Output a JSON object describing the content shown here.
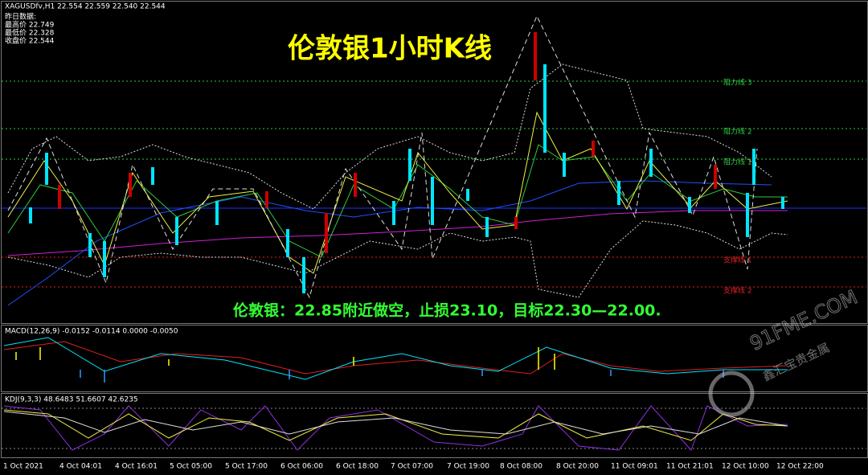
{
  "header": {
    "symbol_line": "XAGUSDfv,H1  22.554 22.559 22.540 22.544",
    "info": [
      "昨日数据:",
      "最高价 22.749",
      "最低价 22.328",
      "收盘价 22.544"
    ]
  },
  "title": "伦敦银1小时K线",
  "levels": [
    "阻力线 3",
    "阻力线 2",
    "阻力线 1",
    "支撑线 1",
    "支撑线 2"
  ],
  "advice": "伦敦银：22.85附近做空，止损23.10，目标22.30—22.00.",
  "macd_label": "MACD(12,26,9) -0.0152 -0.0114 0.0000 -0.0050",
  "kdj_label": "KDJ(9,3,3) 48.6483 51.6607 42.6235",
  "time_labels": [
    "1 Oct 2021",
    "4 Oct 04:01",
    "4 Oct 16:01",
    "5 Oct 05:00",
    "5 Oct 17:00",
    "6 Oct 06:00",
    "6 Oct 18:00",
    "7 Oct 07:00",
    "7 Oct 19:00",
    "8 Oct 08:00",
    "8 Oct 20:00",
    "11 Oct 09:01",
    "11 Oct 21:01",
    "12 Oct 10:00",
    "12 Oct 22:00"
  ],
  "watermark": {
    "site": "91FME.COM",
    "brand": "鑫汇宝贵金属"
  }
}
